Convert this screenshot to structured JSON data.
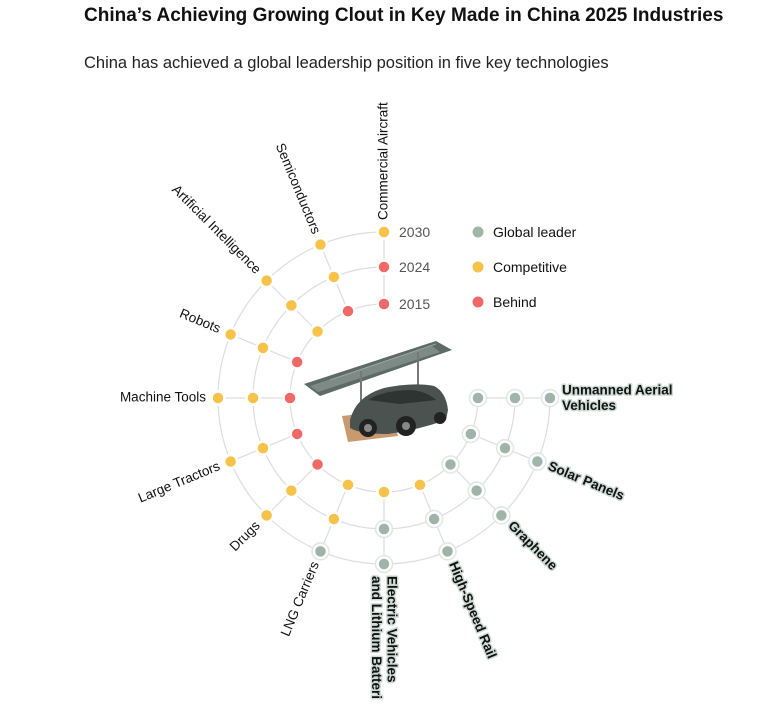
{
  "header": {
    "title": "China’s Achieving Growing Clout in Key Made in China 2025 Industries",
    "subtitle": "China has achieved a global leadership position in five key technologies"
  },
  "colors": {
    "global_leader": "#9fb5a8",
    "competitive": "#f7c24a",
    "behind": "#ef6a66",
    "grid": "#dddddd"
  },
  "chart_data": {
    "type": "radial-dot",
    "rings": [
      "2015",
      "2024",
      "2030"
    ],
    "legend": [
      {
        "key": "global_leader",
        "label": "Global leader"
      },
      {
        "key": "competitive",
        "label": "Competitive"
      },
      {
        "key": "behind",
        "label": "Behind"
      }
    ],
    "categories": [
      {
        "label": "Commercial Aircraft",
        "status": [
          "behind",
          "behind",
          "competitive"
        ],
        "leader": false
      },
      {
        "label": "Semiconductors",
        "status": [
          "behind",
          "competitive",
          "competitive"
        ],
        "leader": false
      },
      {
        "label": "Artificial Intelligence",
        "status": [
          "competitive",
          "competitive",
          "competitive"
        ],
        "leader": false
      },
      {
        "label": "Robots",
        "status": [
          "behind",
          "competitive",
          "competitive"
        ],
        "leader": false
      },
      {
        "label": "Machine Tools",
        "status": [
          "behind",
          "competitive",
          "competitive"
        ],
        "leader": false
      },
      {
        "label": "Large Tractors",
        "status": [
          "behind",
          "competitive",
          "competitive"
        ],
        "leader": false
      },
      {
        "label": "Drugs",
        "status": [
          "behind",
          "competitive",
          "competitive"
        ],
        "leader": false
      },
      {
        "label": "LNG Carriers",
        "status": [
          "competitive",
          "competitive",
          "global_leader"
        ],
        "leader": false
      },
      {
        "label": "Electric Vehicles and Lithium Batteri",
        "status": [
          "competitive",
          "global_leader",
          "global_leader"
        ],
        "leader": true
      },
      {
        "label": "High-Speed Rail",
        "status": [
          "competitive",
          "global_leader",
          "global_leader"
        ],
        "leader": true
      },
      {
        "label": "Graphene",
        "status": [
          "global_leader",
          "global_leader",
          "global_leader"
        ],
        "leader": true
      },
      {
        "label": "Solar Panels",
        "status": [
          "global_leader",
          "global_leader",
          "global_leader"
        ],
        "leader": true
      },
      {
        "label": "Unmanned Aerial Vehicles",
        "status": [
          "global_leader",
          "global_leader",
          "global_leader"
        ],
        "leader": true
      }
    ]
  }
}
